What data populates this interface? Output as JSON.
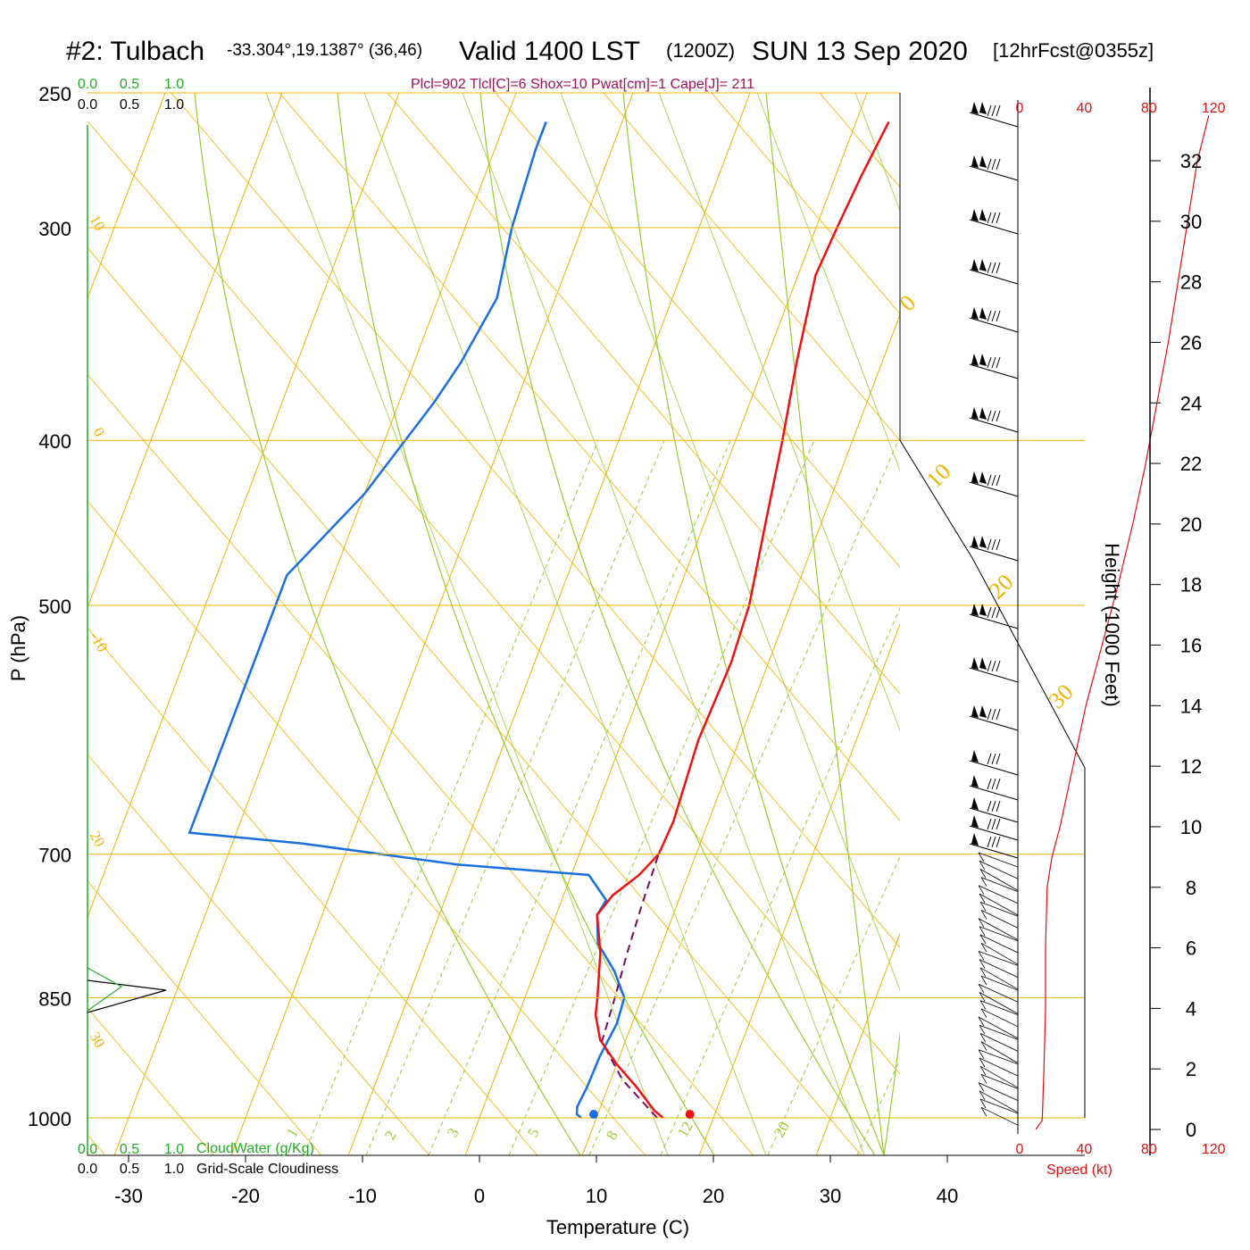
{
  "header": {
    "station": "#2: Tulbach",
    "coords": "-33.304°,19.1387° (36,46)",
    "valid": "Valid 1400 LST",
    "zulu": "(1200Z)",
    "date": "SUN 13 Sep 2020",
    "forecast": "[12hrFcst@0355z]"
  },
  "parcel_info": "Plcl=902 Tlcl[C]=6 Shox=10 Pwat[cm]=1 Cape[J]= 211",
  "cloud_scale": {
    "top_green": [
      "0.0",
      "0.5",
      "1.0"
    ],
    "top_black": [
      "0.0",
      "0.5",
      "1.0"
    ],
    "bottom_green": [
      "0.0",
      "0.5",
      "1.0"
    ],
    "bottom_black": [
      "0.0",
      "0.5",
      "1.0"
    ],
    "cloudwater_label": "CloudWater (g/Kg)",
    "cloudiness_label": "Grid-Scale Cloudiness"
  },
  "speed_axis": {
    "ticks": [
      "0",
      "40",
      "80",
      "120"
    ],
    "label": "Speed (kt)"
  },
  "colors": {
    "temperature": "#ee1111",
    "dewpoint": "#1a6fe0",
    "parcel": "#7a0a5a",
    "isotherm": "#f0b400",
    "adiabat": "#99cc33",
    "speed": "#dd1111",
    "cloudwater": "#22aa22"
  },
  "chart_data": {
    "type": "line",
    "diagram": "skew-T log-P",
    "xlabel": "Temperature (C)",
    "ylabel": "P (hPa)",
    "y2label": "Height (1000 Feet)",
    "x_ticks": [
      -30,
      -20,
      -10,
      0,
      10,
      20,
      30,
      40
    ],
    "p_ticks": [
      250,
      300,
      400,
      500,
      700,
      850,
      1000
    ],
    "height_ticks": [
      0,
      2,
      4,
      6,
      8,
      10,
      12,
      14,
      16,
      18,
      20,
      22,
      24,
      26,
      28,
      30,
      32
    ],
    "skewed_isotherm_labels": [
      "10",
      "0",
      "-10",
      "20",
      "30"
    ],
    "upper_isotherm_labels": [
      "0",
      "10",
      "20",
      "30"
    ],
    "mixing_ratio_labels": [
      "1",
      "2",
      "3",
      "5",
      "8",
      "12",
      "20"
    ],
    "series": [
      {
        "name": "temperature",
        "points": [
          [
            1000,
            15.7
          ],
          [
            990,
            14.7
          ],
          [
            960,
            12.5
          ],
          [
            930,
            10.0
          ],
          [
            900,
            7.8
          ],
          [
            870,
            6.6
          ],
          [
            850,
            6.2
          ],
          [
            800,
            5.0
          ],
          [
            760,
            3.5
          ],
          [
            740,
            4.2
          ],
          [
            720,
            5.8
          ],
          [
            700,
            6.8
          ],
          [
            670,
            7.0
          ],
          [
            600,
            6.5
          ],
          [
            540,
            6.8
          ],
          [
            500,
            6.5
          ],
          [
            450,
            5.3
          ],
          [
            400,
            4.0
          ],
          [
            360,
            2.7
          ],
          [
            320,
            1.5
          ],
          [
            300,
            1.8
          ],
          [
            280,
            2.2
          ],
          [
            260,
            2.8
          ]
        ]
      },
      {
        "name": "dewpoint",
        "points": [
          [
            1000,
            8.7
          ],
          [
            995,
            8.2
          ],
          [
            985,
            8.0
          ],
          [
            960,
            8.2
          ],
          [
            920,
            8.3
          ],
          [
            880,
            8.7
          ],
          [
            850,
            8.5
          ],
          [
            820,
            6.8
          ],
          [
            790,
            4.5
          ],
          [
            760,
            3.5
          ],
          [
            745,
            3.8
          ],
          [
            720,
            1.5
          ],
          [
            710,
            -10.0
          ],
          [
            690,
            -24.0
          ],
          [
            680,
            -34.0
          ],
          [
            480,
            -34.0
          ],
          [
            430,
            -30.0
          ],
          [
            380,
            -27.0
          ],
          [
            360,
            -26.0
          ],
          [
            330,
            -25.0
          ],
          [
            300,
            -26.0
          ],
          [
            270,
            -26.5
          ],
          [
            260,
            -26.5
          ]
        ]
      },
      {
        "name": "parcel",
        "points": [
          [
            1000,
            15.2
          ],
          [
            950,
            11.0
          ],
          [
            902,
            8.0
          ],
          [
            850,
            7.7
          ],
          [
            800,
            7.3
          ],
          [
            750,
            7.0
          ],
          [
            700,
            6.8
          ]
        ]
      },
      {
        "name": "wind speed",
        "points": [
          [
            0,
            10
          ],
          [
            0.3,
            14
          ],
          [
            2,
            15
          ],
          [
            4,
            16
          ],
          [
            6,
            16
          ],
          [
            8,
            17
          ],
          [
            9,
            20
          ],
          [
            10,
            25
          ],
          [
            12,
            33
          ],
          [
            14,
            41
          ],
          [
            16,
            51
          ],
          [
            18,
            61
          ],
          [
            20,
            70
          ],
          [
            22,
            78
          ],
          [
            24,
            85
          ],
          [
            26,
            92
          ],
          [
            28,
            98
          ],
          [
            30,
            104
          ],
          [
            32,
            110
          ],
          [
            33.5,
            117
          ]
        ]
      }
    ]
  }
}
